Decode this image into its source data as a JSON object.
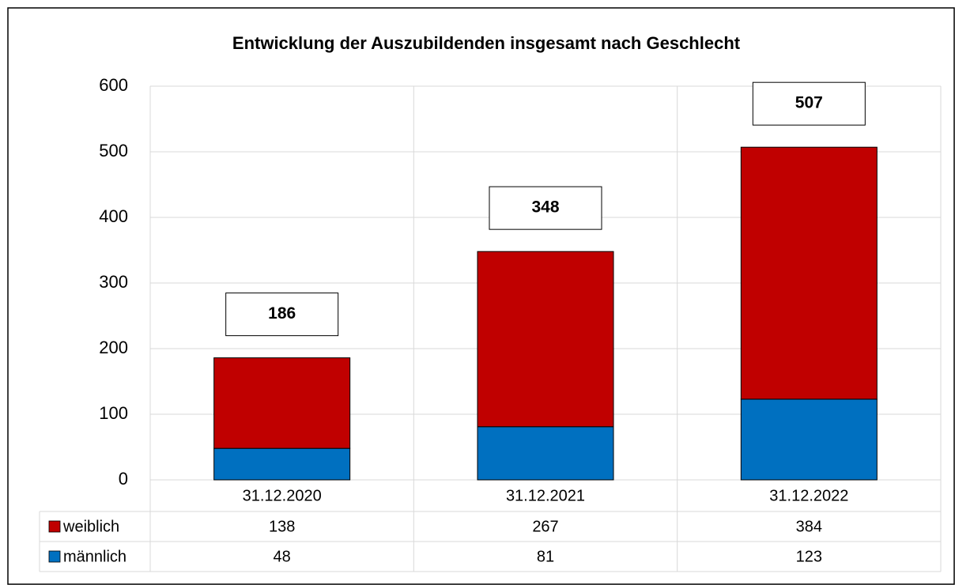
{
  "chart_data": {
    "type": "stacked_bar",
    "title": "Entwicklung der Auszubildenden insgesamt nach Geschlecht",
    "categories": [
      "31.12.2020",
      "31.12.2021",
      "31.12.2022"
    ],
    "series": [
      {
        "name": "weiblich",
        "color": "#c00000",
        "values": [
          138,
          267,
          384
        ]
      },
      {
        "name": "männlich",
        "color": "#0070c0",
        "values": [
          48,
          81,
          123
        ]
      }
    ],
    "total_labels": [
      186,
      348,
      507
    ],
    "ylim": [
      0,
      600
    ],
    "yticks": [
      0,
      100,
      200,
      300,
      400,
      500,
      600
    ],
    "grid": true,
    "legend": "table"
  }
}
